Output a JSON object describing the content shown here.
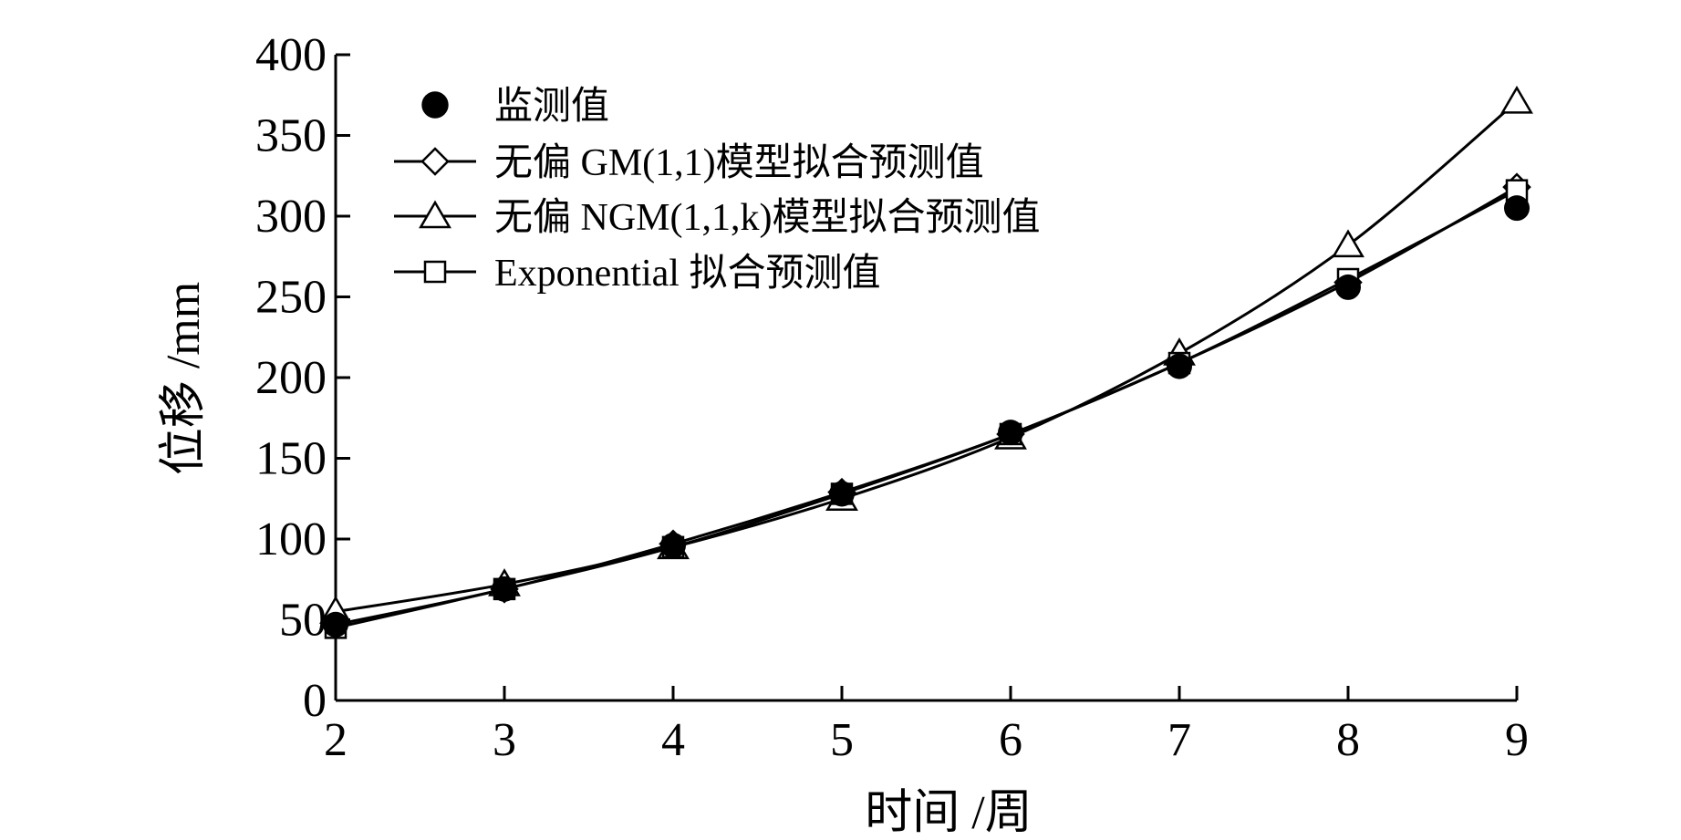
{
  "chart_data": {
    "type": "line",
    "xlabel": "时间 /周",
    "ylabel": "位移 /mm",
    "xlim": [
      2,
      9
    ],
    "ylim": [
      0,
      400
    ],
    "xticks": [
      2,
      3,
      4,
      5,
      6,
      7,
      8,
      9
    ],
    "yticks": [
      0,
      50,
      100,
      150,
      200,
      250,
      300,
      350,
      400
    ],
    "grid": false,
    "legend_position": "top-left",
    "x": [
      2,
      3,
      4,
      5,
      6,
      7,
      8,
      9
    ],
    "series": [
      {
        "name": "监测值",
        "marker": "filled-circle",
        "line": false,
        "values": [
          47,
          69,
          96,
          128,
          166,
          207,
          256,
          305
        ]
      },
      {
        "name": "无偏 GM(1,1)模型拟合预测值",
        "marker": "diamond",
        "line": true,
        "values": [
          47,
          69,
          97,
          129,
          165,
          209,
          259,
          318
        ]
      },
      {
        "name": "无偏 NGM(1,1,k)模型拟合预测值",
        "marker": "triangle",
        "line": true,
        "values": [
          55,
          72,
          95,
          125,
          163,
          215,
          282,
          371
        ]
      },
      {
        "name": "Exponential 拟合预测值",
        "marker": "square",
        "line": true,
        "values": [
          45,
          69,
          95,
          128,
          165,
          209,
          261,
          316
        ]
      }
    ]
  }
}
